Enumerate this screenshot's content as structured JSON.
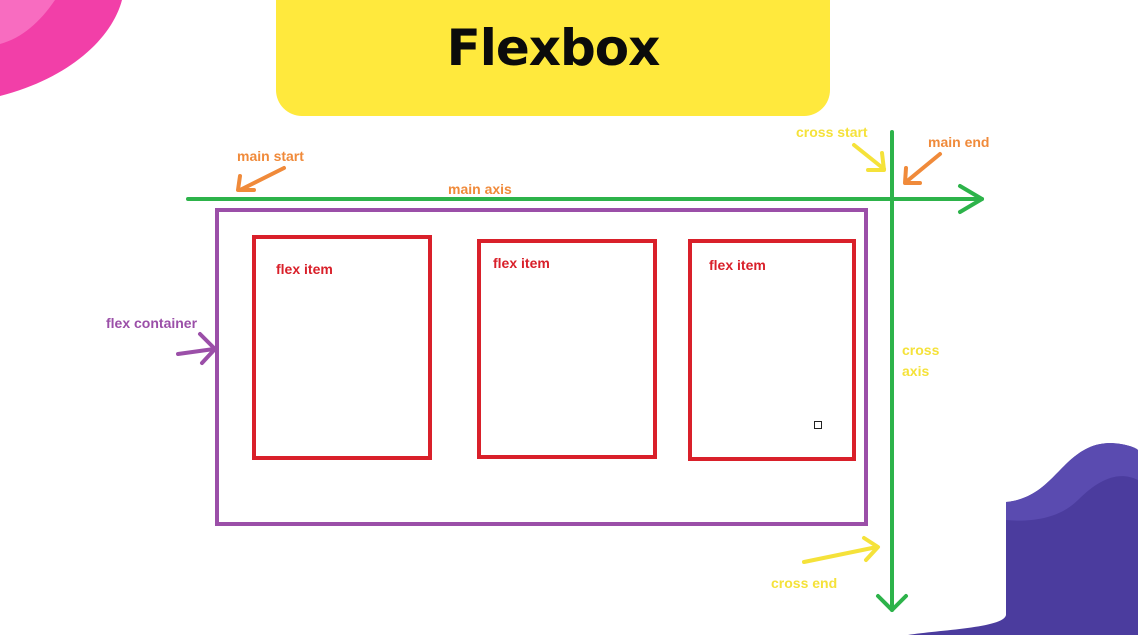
{
  "title": "Flexbox",
  "labels": {
    "main_start": "main start",
    "main_axis": "main axis",
    "main_end": "main end",
    "cross_start": "cross start",
    "cross_axis": "cross axis",
    "cross_end": "cross end",
    "flex_container": "flex container"
  },
  "flex_items": [
    "flex item",
    "flex item",
    "flex item"
  ],
  "colors": {
    "banner": "#ffe93d",
    "axis": "#2db34a",
    "container": "#9b4fa8",
    "item": "#d9202a",
    "orange_label": "#f08a3a",
    "yellow_label": "#f5e23a",
    "pink_blob": "#f23fa8",
    "purple_blob": "#4b3c9e"
  }
}
